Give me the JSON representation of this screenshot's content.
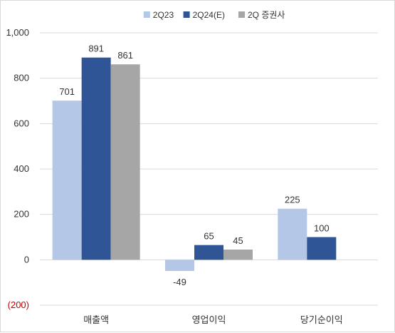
{
  "chart_data": {
    "type": "bar",
    "categories": [
      "매출액",
      "영업이익",
      "당기순이익"
    ],
    "series": [
      {
        "name": "2Q23",
        "color": "#b4c7e7",
        "values": [
          701,
          -49,
          225
        ]
      },
      {
        "name": "2Q24(E)",
        "color": "#2f5597",
        "values": [
          891,
          65,
          100
        ]
      },
      {
        "name": "2Q 증권사",
        "color": "#a6a6a6",
        "values": [
          861,
          45,
          null
        ]
      }
    ],
    "ylim": [
      -200,
      1000
    ],
    "yticks": [
      -200,
      0,
      200,
      400,
      600,
      800,
      1000
    ],
    "ytick_labels": [
      "(200)",
      "0",
      "200",
      "400",
      "600",
      "800",
      "1,000"
    ],
    "negative_tick_color": "#c00000",
    "grid": true,
    "legend_position": "top-center",
    "data_labels": true
  }
}
